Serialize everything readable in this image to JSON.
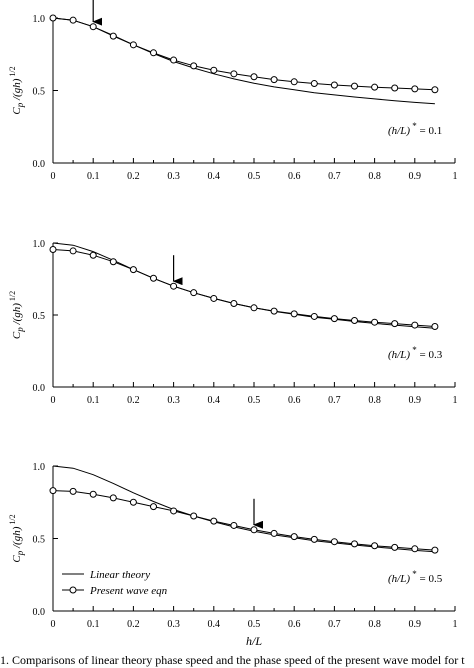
{
  "chart_data": [
    {
      "type": "line",
      "ylabel": "C_p /(gh)^1/2",
      "annotation": "(h/L)* = 0.1",
      "annotation_parts": {
        "prefix": "(h/L)",
        "star": "*",
        "value": "= 0.1"
      },
      "arrow_at_x": 0.1,
      "xlim": [
        0,
        1
      ],
      "ylim": [
        0,
        1
      ],
      "xticks": [
        "0",
        "0.1",
        "0.2",
        "0.3",
        "0.4",
        "0.5",
        "0.6",
        "0.7",
        "0.8",
        "0.9",
        "1"
      ],
      "yticks": [
        "0.0",
        "0.5",
        "1.0"
      ],
      "series": [
        {
          "name": "Linear theory",
          "marker": "none",
          "x": [
            0,
            0.05,
            0.1,
            0.15,
            0.2,
            0.25,
            0.3,
            0.35,
            0.4,
            0.45,
            0.5,
            0.55,
            0.6,
            0.65,
            0.7,
            0.75,
            0.8,
            0.85,
            0.9,
            0.95
          ],
          "y": [
            1.0,
            0.985,
            0.94,
            0.88,
            0.815,
            0.755,
            0.7,
            0.655,
            0.615,
            0.58,
            0.55,
            0.525,
            0.505,
            0.485,
            0.47,
            0.455,
            0.442,
            0.43,
            0.418,
            0.408
          ]
        },
        {
          "name": "Present wave eqn",
          "marker": "circle",
          "x": [
            0,
            0.05,
            0.1,
            0.15,
            0.2,
            0.25,
            0.3,
            0.35,
            0.4,
            0.45,
            0.5,
            0.55,
            0.6,
            0.65,
            0.7,
            0.75,
            0.8,
            0.85,
            0.9,
            0.95
          ],
          "y": [
            1.0,
            0.985,
            0.94,
            0.875,
            0.815,
            0.76,
            0.71,
            0.67,
            0.64,
            0.615,
            0.595,
            0.575,
            0.56,
            0.548,
            0.538,
            0.53,
            0.523,
            0.517,
            0.511,
            0.505
          ]
        }
      ]
    },
    {
      "type": "line",
      "ylabel": "C_p /(gh)^1/2",
      "annotation": "(h/L)* = 0.3",
      "annotation_parts": {
        "prefix": "(h/L)",
        "star": "*",
        "value": "= 0.3"
      },
      "arrow_at_x": 0.3,
      "xlim": [
        0,
        1
      ],
      "ylim": [
        0,
        1
      ],
      "xticks": [
        "0",
        "0.1",
        "0.2",
        "0.3",
        "0.4",
        "0.5",
        "0.6",
        "0.7",
        "0.8",
        "0.9",
        "1"
      ],
      "yticks": [
        "0.0",
        "0.5",
        "1.0"
      ],
      "series": [
        {
          "name": "Linear theory",
          "marker": "none",
          "x": [
            0,
            0.05,
            0.1,
            0.15,
            0.2,
            0.25,
            0.3,
            0.35,
            0.4,
            0.45,
            0.5,
            0.55,
            0.6,
            0.65,
            0.7,
            0.75,
            0.8,
            0.85,
            0.9,
            0.95
          ],
          "y": [
            1.0,
            0.985,
            0.94,
            0.88,
            0.815,
            0.755,
            0.7,
            0.655,
            0.615,
            0.58,
            0.55,
            0.525,
            0.505,
            0.485,
            0.47,
            0.455,
            0.442,
            0.43,
            0.418,
            0.408
          ]
        },
        {
          "name": "Present wave eqn",
          "marker": "circle",
          "x": [
            0,
            0.05,
            0.1,
            0.15,
            0.2,
            0.25,
            0.3,
            0.35,
            0.4,
            0.45,
            0.5,
            0.55,
            0.6,
            0.65,
            0.7,
            0.75,
            0.8,
            0.85,
            0.9,
            0.95
          ],
          "y": [
            0.955,
            0.945,
            0.915,
            0.87,
            0.815,
            0.755,
            0.7,
            0.655,
            0.615,
            0.58,
            0.55,
            0.527,
            0.508,
            0.49,
            0.475,
            0.462,
            0.45,
            0.44,
            0.43,
            0.42
          ]
        }
      ]
    },
    {
      "type": "line",
      "ylabel": "C_p /(gh)^1/2",
      "annotation": "(h/L)* = 0.5",
      "annotation_parts": {
        "prefix": "(h/L)",
        "star": "*",
        "value": "= 0.5"
      },
      "arrow_at_x": 0.5,
      "xlim": [
        0,
        1
      ],
      "ylim": [
        0,
        1
      ],
      "xticks": [
        "0",
        "0.1",
        "0.2",
        "0.3",
        "0.4",
        "0.5",
        "0.6",
        "0.7",
        "0.8",
        "0.9",
        "1"
      ],
      "yticks": [
        "0.0",
        "0.5",
        "1.0"
      ],
      "xlabel": "h/L",
      "legend": {
        "position": "bottom-left",
        "entries": [
          "Linear theory",
          "Present wave eqn"
        ]
      },
      "series": [
        {
          "name": "Linear theory",
          "marker": "none",
          "x": [
            0,
            0.05,
            0.1,
            0.15,
            0.2,
            0.25,
            0.3,
            0.35,
            0.4,
            0.45,
            0.5,
            0.55,
            0.6,
            0.65,
            0.7,
            0.75,
            0.8,
            0.85,
            0.9,
            0.95
          ],
          "y": [
            1.0,
            0.985,
            0.94,
            0.88,
            0.815,
            0.755,
            0.7,
            0.655,
            0.615,
            0.58,
            0.55,
            0.525,
            0.505,
            0.485,
            0.47,
            0.455,
            0.442,
            0.43,
            0.418,
            0.408
          ]
        },
        {
          "name": "Present wave eqn",
          "marker": "circle",
          "x": [
            0,
            0.05,
            0.1,
            0.15,
            0.2,
            0.25,
            0.3,
            0.35,
            0.4,
            0.45,
            0.5,
            0.55,
            0.6,
            0.65,
            0.7,
            0.75,
            0.8,
            0.85,
            0.9,
            0.95
          ],
          "y": [
            0.83,
            0.825,
            0.805,
            0.78,
            0.75,
            0.72,
            0.69,
            0.655,
            0.62,
            0.59,
            0.56,
            0.535,
            0.513,
            0.494,
            0.478,
            0.463,
            0.45,
            0.439,
            0.429,
            0.42
          ]
        }
      ]
    }
  ],
  "caption": "1. Comparisons of linear theory phase speed and the phase speed of the present wave model for t"
}
